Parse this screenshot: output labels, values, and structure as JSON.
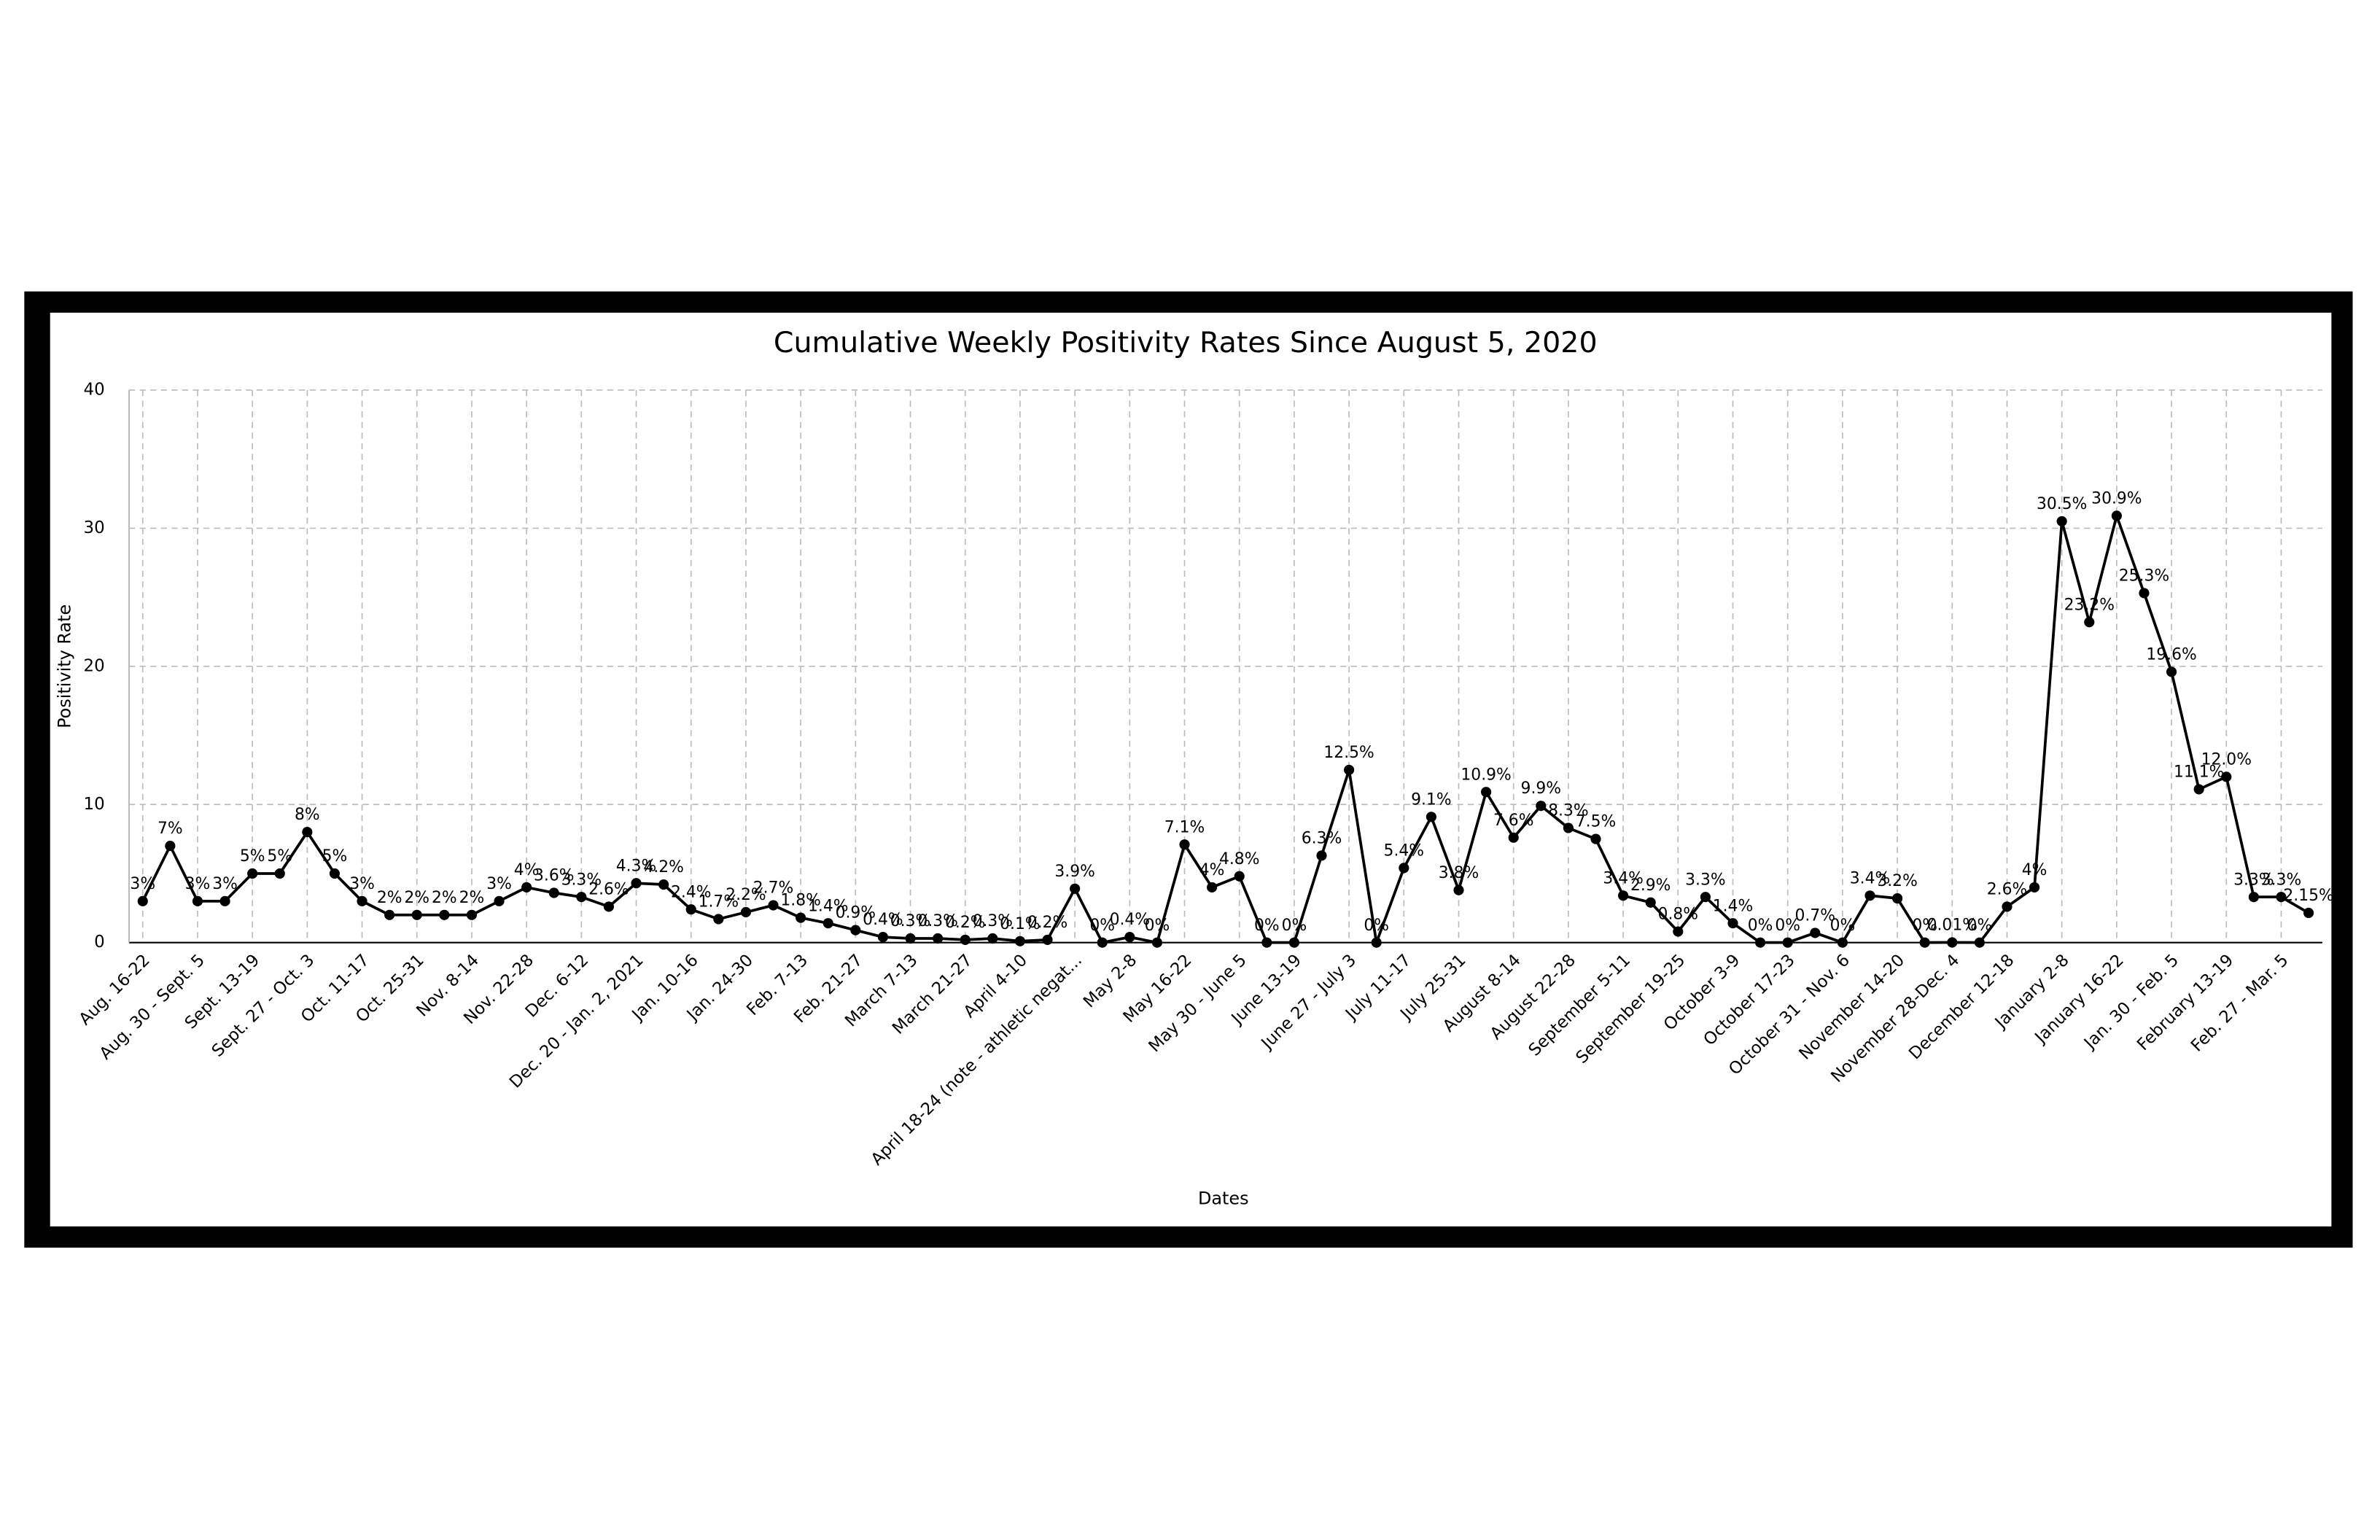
{
  "chart_data": {
    "type": "line",
    "title": "Cumulative Weekly Positivity Rates Since August 5, 2020",
    "x_label": "Dates",
    "y_label": "Positivity Rate",
    "categories": [
      "Aug. 16-22",
      null,
      "Aug. 30 - Sept. 5",
      null,
      "Sept. 13-19",
      null,
      "Sept. 27 - Oct. 3",
      null,
      "Oct. 11-17",
      null,
      "Oct. 25-31",
      null,
      "Nov. 8-14",
      null,
      "Nov. 22-28",
      null,
      "Dec. 6-12",
      null,
      "Dec. 20 - Jan. 2, 2021",
      null,
      "Jan. 10-16",
      null,
      "Jan. 24-30",
      null,
      "Feb. 7-13",
      null,
      "Feb. 21-27",
      null,
      "March 7-13",
      null,
      "March 21-27",
      null,
      "April 4-10",
      null,
      "April 18-24 (note - athletic negat...",
      null,
      "May 2-8",
      null,
      "May 16-22",
      null,
      "May 30 - June 5",
      null,
      "June 13-19",
      null,
      "June 27 - July 3",
      null,
      "July 11-17",
      null,
      "July 25-31",
      null,
      "August 8-14",
      null,
      "August 22-28",
      null,
      "September 5-11",
      null,
      "September 19-25",
      null,
      "October 3-9",
      null,
      "October 17-23",
      null,
      "October 31 - Nov. 6",
      null,
      "November 14-20",
      null,
      "November 28-Dec. 4",
      null,
      "December 12-18",
      null,
      "January 2-8",
      null,
      "January 16-22",
      null,
      "Jan. 30 - Feb. 5",
      null,
      "February 13-19",
      null,
      "Feb. 27 - Mar. 5",
      null
    ],
    "series": [
      {
        "name": "Positivity Rate",
        "color": "#000000",
        "values": [
          3,
          7,
          3,
          3,
          5,
          5,
          8,
          5,
          3,
          2,
          2,
          2,
          2,
          3,
          4,
          3.6,
          3.3,
          2.6,
          4.3,
          4.2,
          2.4,
          1.7,
          2.2,
          2.7,
          1.8,
          1.4,
          0.9,
          0.4,
          0.3,
          0.3,
          0.2,
          0.3,
          0.1,
          0.2,
          3.9,
          0,
          0.4,
          0,
          7.1,
          4,
          4.8,
          0,
          0,
          6.3,
          12.5,
          0,
          5.4,
          9.1,
          3.8,
          10.9,
          7.6,
          9.9,
          8.3,
          7.5,
          3.4,
          2.9,
          0.8,
          3.3,
          1.4,
          0,
          0,
          0.7,
          0,
          3.4,
          3.2,
          0,
          0.01,
          0,
          2.6,
          4,
          30.5,
          23.2,
          30.9,
          25.3,
          19.6,
          11.1,
          12,
          3.3,
          3.3,
          2.15
        ],
        "value_labels": [
          "3%",
          "7%",
          "3%",
          "3%",
          "5%",
          "5%",
          "8%",
          "5%",
          "3%",
          "2%",
          "2%",
          "2%",
          "2%",
          "3%",
          "4%",
          "3.6%",
          "3.3%",
          "2.6%",
          "4.3%",
          "4.2%",
          "2.4%",
          "1.7%",
          "2.2%",
          "2.7%",
          "1.8%",
          "1.4%",
          "0.9%",
          "0.4%",
          "0.3%",
          "0.3%",
          "0.2%",
          "0.3%",
          "0.1%",
          "0.2%",
          "3.9%",
          "0%",
          "0.4%",
          "0%",
          "7.1%",
          "4%",
          "4.8%",
          "0%",
          "0%",
          "6.3%",
          "12.5%",
          "0%",
          "5.4%",
          "9.1%",
          "3.8%",
          "10.9%",
          "7.6%",
          "9.9%",
          "8.3%",
          "7.5%",
          "3.4%",
          "2.9%",
          "0.8%",
          "3.3%",
          "1.4%",
          "0%",
          "0%",
          "0.7%",
          "0%",
          "3.4%",
          "3.2%",
          "0%",
          "0.01%",
          "0%",
          "2.6%",
          "4%",
          "30.5%",
          "23.2%",
          "30.9%",
          "25.3%",
          "19.6%",
          "11.1%",
          "12.0%",
          "3.3%",
          "3.3%",
          "2.15%"
        ]
      }
    ],
    "ylim": [
      0,
      40
    ],
    "yticks": [
      0,
      10,
      20,
      30,
      40
    ],
    "grid": true
  }
}
